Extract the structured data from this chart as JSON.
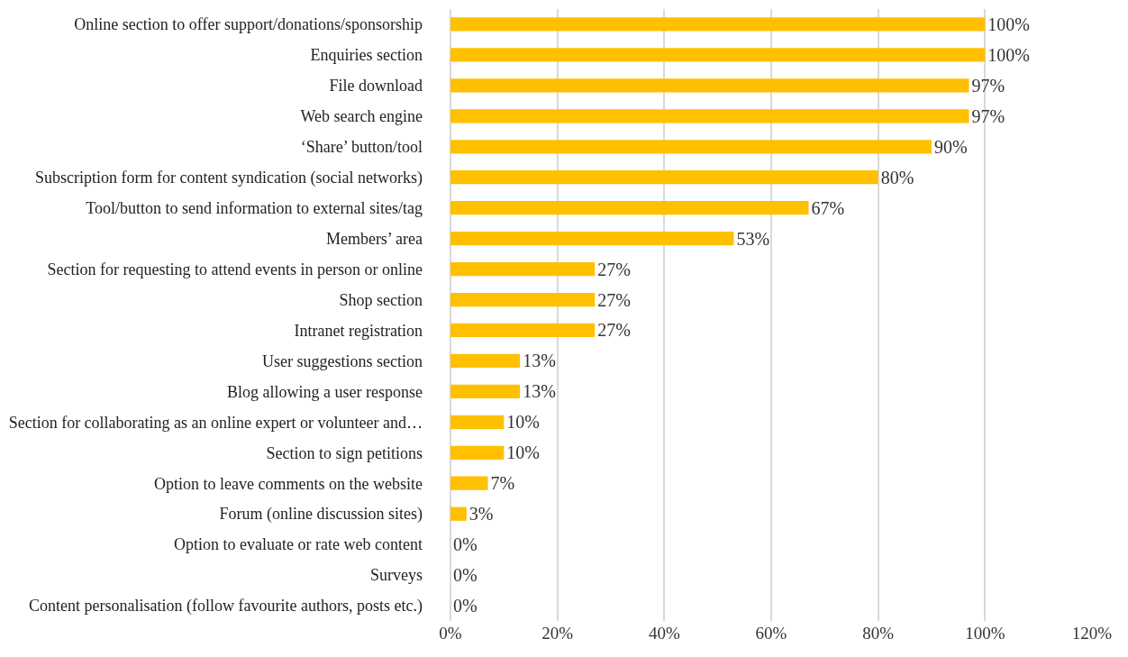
{
  "chart_data": {
    "type": "bar",
    "orientation": "horizontal",
    "categories": [
      "Online section to offer support/donations/sponsorship",
      "Enquiries section",
      "File download",
      "Web search engine",
      "‘Share’ button/tool",
      "Subscription form for content syndication (social networks)",
      "Tool/button to send information to external sites/tag",
      "Members’ area",
      "Section for requesting to attend events in person or online",
      "Shop section",
      "Intranet registration",
      "User suggestions section",
      "Blog allowing a user response",
      "Section for collaborating as an online expert or volunteer and…",
      "Section to sign petitions",
      "Option to leave comments on the website",
      "Forum (online discussion sites)",
      "Option to evaluate or rate web content",
      "Surveys",
      "Content personalisation (follow favourite authors, posts etc.)"
    ],
    "values": [
      100,
      100,
      97,
      97,
      90,
      80,
      67,
      53,
      27,
      27,
      27,
      13,
      13,
      10,
      10,
      7,
      3,
      0,
      0,
      0
    ],
    "value_labels": [
      "100%",
      "100%",
      "97%",
      "97%",
      "90%",
      "80%",
      "67%",
      "53%",
      "27%",
      "27%",
      "27%",
      "13%",
      "13%",
      "10%",
      "10%",
      "7%",
      "3%",
      "0%",
      "0%",
      "0%"
    ],
    "color": "#ffc000",
    "xlim": [
      0,
      120
    ],
    "xticks": [
      {
        "value": 0,
        "label": "0%"
      },
      {
        "value": 20,
        "label": "20%"
      },
      {
        "value": 40,
        "label": "40%"
      },
      {
        "value": 60,
        "label": "60%"
      },
      {
        "value": 80,
        "label": "80%"
      },
      {
        "value": 100,
        "label": "100%"
      },
      {
        "value": 120,
        "label": "120%"
      }
    ],
    "grid": "x",
    "legend": false
  }
}
